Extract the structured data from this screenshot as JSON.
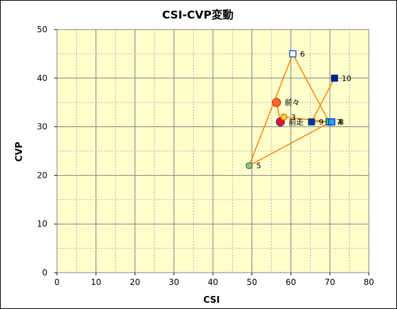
{
  "chart_data": {
    "type": "scatter",
    "title": "CSI-CVP変動",
    "xlabel": "CSI",
    "ylabel": "CVP",
    "xlim": [
      0,
      80
    ],
    "ylim": [
      0,
      50
    ],
    "xticks": [
      0,
      10,
      20,
      30,
      40,
      50,
      60,
      70,
      80
    ],
    "yticks": [
      0,
      10,
      20,
      30,
      40,
      50
    ],
    "grid": true,
    "plot_background": "#ffffcc",
    "line_color": "#ff8000",
    "path_order": [
      "前々",
      "前走",
      "3",
      "4",
      "5",
      "6",
      "7",
      "8",
      "9",
      "10"
    ],
    "points": [
      {
        "label": "前々",
        "x": 56.3,
        "y": 35,
        "marker": "circle",
        "size": 6,
        "fill": "#ff6633",
        "stroke": "#cc3300"
      },
      {
        "label": "前走",
        "x": 57.3,
        "y": 31,
        "marker": "circle",
        "size": 6,
        "fill": "#ee1122",
        "stroke": "#3333aa"
      },
      {
        "label": "3",
        "x": 58.2,
        "y": 32,
        "marker": "circle",
        "size": 4.5,
        "fill": "#ffcc33",
        "stroke": "#cc6600"
      },
      {
        "label": "4",
        "x": 70.2,
        "y": 31,
        "marker": "square",
        "size": 4.5,
        "fill": "#66ccff",
        "stroke": "#0033cc"
      },
      {
        "label": "5",
        "x": 49.3,
        "y": 22,
        "marker": "circle",
        "size": 4.5,
        "fill": "#99cc33",
        "stroke": "#3366cc"
      },
      {
        "label": "6",
        "x": 60.5,
        "y": 45,
        "marker": "square",
        "size": 4.5,
        "fill": "#ffffff",
        "stroke": "#0033cc"
      },
      {
        "label": "7",
        "x": 69.8,
        "y": 31,
        "marker": "square",
        "size": 4.5,
        "fill": "#33cc33",
        "stroke": "#0033cc"
      },
      {
        "label": "8",
        "x": 70.5,
        "y": 31,
        "marker": "square",
        "size": 4.5,
        "fill": "#3399ff",
        "stroke": "#0033cc"
      },
      {
        "label": "9",
        "x": 65.3,
        "y": 31,
        "marker": "square",
        "size": 4.5,
        "fill": "#003399",
        "stroke": "#003399"
      },
      {
        "label": "10",
        "x": 71.2,
        "y": 40,
        "marker": "square",
        "size": 4.5,
        "fill": "#002288",
        "stroke": "#002288"
      }
    ]
  }
}
